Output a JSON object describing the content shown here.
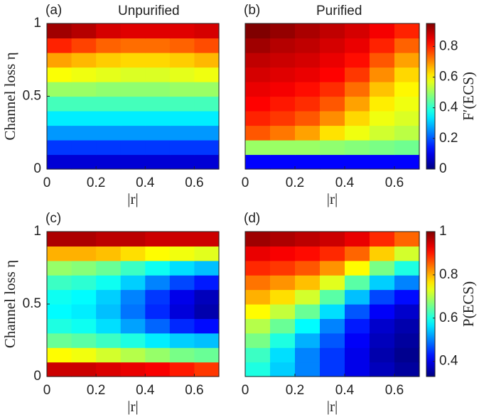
{
  "chart_data": [
    {
      "type": "heatmap",
      "panel": "(a)",
      "title": "Unpurified",
      "colormap": "jet",
      "xlabel": "|r|",
      "ylabel": "Channel loss η",
      "xlim": [
        0,
        0.7
      ],
      "ylim": [
        0,
        1
      ],
      "xticks": [
        0,
        0.2,
        0.4,
        0.6
      ],
      "yticks": [
        0,
        0.5,
        1
      ],
      "clim": [
        0,
        0.95
      ],
      "x": [
        0.05,
        0.15,
        0.25,
        0.35,
        0.45,
        0.55,
        0.65
      ],
      "y": [
        0.05,
        0.15,
        0.25,
        0.35,
        0.45,
        0.55,
        0.65,
        0.75,
        0.85,
        0.95
      ],
      "z": [
        [
          0.08,
          0.08,
          0.08,
          0.08,
          0.08,
          0.08,
          0.08
        ],
        [
          0.17,
          0.17,
          0.17,
          0.17,
          0.17,
          0.17,
          0.17
        ],
        [
          0.26,
          0.26,
          0.26,
          0.26,
          0.26,
          0.26,
          0.26
        ],
        [
          0.34,
          0.34,
          0.34,
          0.34,
          0.34,
          0.34,
          0.34
        ],
        [
          0.42,
          0.42,
          0.42,
          0.42,
          0.42,
          0.42,
          0.42
        ],
        [
          0.5,
          0.5,
          0.49,
          0.49,
          0.49,
          0.5,
          0.5
        ],
        [
          0.59,
          0.58,
          0.57,
          0.56,
          0.56,
          0.57,
          0.58
        ],
        [
          0.68,
          0.66,
          0.64,
          0.63,
          0.63,
          0.64,
          0.66
        ],
        [
          0.8,
          0.77,
          0.74,
          0.73,
          0.73,
          0.74,
          0.76
        ],
        [
          0.92,
          0.9,
          0.87,
          0.86,
          0.86,
          0.86,
          0.87
        ]
      ]
    },
    {
      "type": "heatmap",
      "panel": "(b)",
      "title": "Purified",
      "colormap": "jet",
      "xlabel": "|r|",
      "xlim": [
        0,
        0.7
      ],
      "ylim": [
        0,
        1
      ],
      "xticks": [
        0,
        0.2,
        0.4,
        0.6
      ],
      "clim": [
        0,
        0.95
      ],
      "colorbar": {
        "label": "F′(ECS)",
        "ticks": [
          0,
          0.2,
          0.4,
          0.6,
          0.8
        ]
      },
      "x": [
        0.05,
        0.15,
        0.25,
        0.35,
        0.45,
        0.55,
        0.65
      ],
      "y": [
        0.05,
        0.15,
        0.25,
        0.35,
        0.45,
        0.55,
        0.65,
        0.75,
        0.85,
        0.95
      ],
      "z": [
        [
          0.12,
          0.12,
          0.12,
          0.12,
          0.12,
          0.12,
          0.12
        ],
        [
          0.5,
          0.5,
          0.5,
          0.49,
          0.48,
          0.47,
          0.46
        ],
        [
          0.75,
          0.72,
          0.68,
          0.62,
          0.58,
          0.55,
          0.53
        ],
        [
          0.8,
          0.78,
          0.75,
          0.7,
          0.63,
          0.58,
          0.56
        ],
        [
          0.83,
          0.81,
          0.79,
          0.75,
          0.68,
          0.61,
          0.58
        ],
        [
          0.85,
          0.84,
          0.82,
          0.79,
          0.73,
          0.65,
          0.6
        ],
        [
          0.87,
          0.86,
          0.85,
          0.83,
          0.78,
          0.7,
          0.63
        ],
        [
          0.89,
          0.88,
          0.87,
          0.85,
          0.82,
          0.75,
          0.68
        ],
        [
          0.92,
          0.9,
          0.89,
          0.87,
          0.85,
          0.8,
          0.74
        ],
        [
          0.95,
          0.93,
          0.91,
          0.89,
          0.87,
          0.84,
          0.8
        ]
      ]
    },
    {
      "type": "heatmap",
      "panel": "(c)",
      "colormap": "jet",
      "xlabel": "|r|",
      "ylabel": "Channel loss η",
      "xlim": [
        0,
        0.7
      ],
      "ylim": [
        0,
        1
      ],
      "xticks": [
        0,
        0.2,
        0.4,
        0.6
      ],
      "yticks": [
        0,
        0.5,
        1
      ],
      "clim": [
        0.33,
        1
      ],
      "x": [
        0.05,
        0.15,
        0.25,
        0.35,
        0.45,
        0.55,
        0.65
      ],
      "y": [
        0.05,
        0.15,
        0.25,
        0.35,
        0.45,
        0.55,
        0.65,
        0.75,
        0.85,
        0.95
      ],
      "z": [
        [
          0.95,
          0.95,
          0.94,
          0.93,
          0.92,
          0.9,
          0.88
        ],
        [
          0.75,
          0.74,
          0.72,
          0.7,
          0.68,
          0.66,
          0.65
        ],
        [
          0.65,
          0.64,
          0.62,
          0.6,
          0.57,
          0.55,
          0.54
        ],
        [
          0.6,
          0.59,
          0.56,
          0.52,
          0.48,
          0.44,
          0.42
        ],
        [
          0.58,
          0.57,
          0.54,
          0.49,
          0.44,
          0.39,
          0.36
        ],
        [
          0.59,
          0.58,
          0.55,
          0.5,
          0.45,
          0.4,
          0.37
        ],
        [
          0.62,
          0.61,
          0.59,
          0.55,
          0.5,
          0.46,
          0.43
        ],
        [
          0.68,
          0.67,
          0.65,
          0.62,
          0.59,
          0.56,
          0.54
        ],
        [
          0.8,
          0.8,
          0.79,
          0.77,
          0.75,
          0.74,
          0.73
        ],
        [
          0.97,
          0.97,
          0.96,
          0.96,
          0.95,
          0.95,
          0.95
        ]
      ]
    },
    {
      "type": "heatmap",
      "panel": "(d)",
      "colormap": "jet",
      "xlabel": "|r|",
      "xlim": [
        0,
        0.7
      ],
      "ylim": [
        0,
        1
      ],
      "xticks": [
        0,
        0.2,
        0.4,
        0.6
      ],
      "clim": [
        0.33,
        1
      ],
      "colorbar": {
        "label": "P(ECS)",
        "ticks": [
          0.4,
          0.6,
          0.8,
          1
        ]
      },
      "x": [
        0.05,
        0.15,
        0.25,
        0.35,
        0.45,
        0.55,
        0.65
      ],
      "y": [
        0.05,
        0.15,
        0.25,
        0.35,
        0.45,
        0.55,
        0.65,
        0.75,
        0.85,
        0.95
      ],
      "z": [
        [
          0.6,
          0.55,
          0.5,
          0.45,
          0.4,
          0.37,
          0.35
        ],
        [
          0.62,
          0.56,
          0.5,
          0.45,
          0.4,
          0.36,
          0.34
        ],
        [
          0.66,
          0.6,
          0.53,
          0.47,
          0.41,
          0.37,
          0.35
        ],
        [
          0.7,
          0.65,
          0.58,
          0.5,
          0.43,
          0.38,
          0.36
        ],
        [
          0.75,
          0.71,
          0.65,
          0.56,
          0.47,
          0.41,
          0.38
        ],
        [
          0.8,
          0.77,
          0.72,
          0.64,
          0.54,
          0.46,
          0.42
        ],
        [
          0.84,
          0.82,
          0.79,
          0.73,
          0.64,
          0.55,
          0.5
        ],
        [
          0.89,
          0.88,
          0.86,
          0.82,
          0.75,
          0.66,
          0.6
        ],
        [
          0.93,
          0.92,
          0.91,
          0.89,
          0.85,
          0.78,
          0.72
        ],
        [
          0.98,
          0.97,
          0.96,
          0.95,
          0.93,
          0.89,
          0.85
        ]
      ]
    }
  ]
}
